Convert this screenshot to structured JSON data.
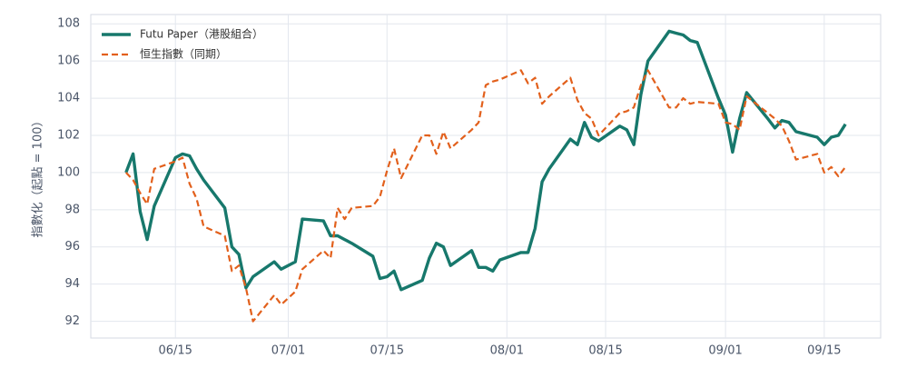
{
  "chart_data": {
    "type": "line",
    "y_label": "指數化（起點 = 100）",
    "x": [
      "06/08",
      "06/09",
      "06/10",
      "06/11",
      "06/12",
      "06/15",
      "06/16",
      "06/17",
      "06/18",
      "06/19",
      "06/22",
      "06/23",
      "06/24",
      "06/25",
      "06/26",
      "06/29",
      "06/30",
      "07/02",
      "07/03",
      "07/06",
      "07/07",
      "07/08",
      "07/09",
      "07/10",
      "07/13",
      "07/14",
      "07/15",
      "07/16",
      "07/17",
      "07/20",
      "07/21",
      "07/22",
      "07/23",
      "07/24",
      "07/27",
      "07/28",
      "07/29",
      "07/30",
      "07/31",
      "08/03",
      "08/04",
      "08/05",
      "08/06",
      "08/07",
      "08/10",
      "08/11",
      "08/12",
      "08/13",
      "08/14",
      "08/17",
      "08/18",
      "08/19",
      "08/20",
      "08/21",
      "08/24",
      "08/25",
      "08/26",
      "08/27",
      "08/28",
      "08/31",
      "09/01",
      "09/02",
      "09/03",
      "09/04",
      "09/07",
      "09/08",
      "09/09",
      "09/10",
      "09/11",
      "09/14",
      "09/15",
      "09/16",
      "09/17",
      "09/18"
    ],
    "series": [
      {
        "name": "Futu Paper（港股組合）",
        "color": "#17786c",
        "dash": false,
        "values": [
          100.0,
          101.0,
          97.9,
          96.4,
          98.2,
          100.8,
          101.0,
          100.9,
          100.2,
          99.6,
          98.1,
          96.0,
          95.6,
          93.8,
          94.4,
          95.2,
          94.8,
          95.2,
          97.5,
          97.4,
          96.6,
          96.6,
          96.4,
          96.2,
          95.5,
          94.3,
          94.4,
          94.7,
          93.7,
          94.2,
          95.4,
          96.2,
          96.0,
          95.0,
          95.8,
          94.9,
          94.9,
          94.7,
          95.3,
          95.7,
          95.7,
          97.0,
          99.5,
          100.2,
          101.8,
          101.5,
          102.7,
          101.9,
          101.7,
          102.5,
          102.3,
          101.5,
          104.2,
          106.0,
          107.6,
          107.5,
          107.4,
          107.1,
          107.0,
          104.0,
          103.1,
          101.1,
          102.9,
          104.3,
          102.9,
          102.4,
          102.8,
          102.7,
          102.2,
          101.9,
          101.5,
          101.9,
          102.0,
          102.6
        ]
      },
      {
        "name": "恒生指數（同期）",
        "color": "#e2601c",
        "dash": true,
        "values": [
          100.0,
          99.6,
          98.9,
          98.3,
          100.2,
          100.6,
          100.8,
          99.4,
          98.6,
          97.1,
          96.6,
          94.7,
          95.0,
          93.8,
          92.0,
          93.4,
          92.9,
          93.6,
          94.8,
          95.8,
          95.4,
          98.1,
          97.5,
          98.1,
          98.2,
          98.7,
          100.1,
          101.3,
          99.7,
          102.0,
          102.0,
          101.0,
          102.2,
          101.3,
          102.3,
          102.7,
          104.7,
          104.9,
          105.0,
          105.5,
          104.8,
          105.1,
          103.7,
          104.1,
          105.1,
          103.9,
          103.2,
          102.9,
          102.0,
          103.2,
          103.3,
          103.5,
          104.7,
          105.5,
          103.5,
          103.5,
          104.0,
          103.7,
          103.8,
          103.7,
          102.7,
          102.6,
          102.3,
          104.1,
          103.2,
          102.9,
          102.5,
          101.7,
          100.7,
          101.0,
          100.0,
          100.3,
          99.8,
          100.3
        ]
      }
    ],
    "xlim": [
      "06/03",
      "09/23"
    ],
    "xticks": [
      "06/15",
      "07/01",
      "07/15",
      "08/01",
      "08/15",
      "09/01",
      "09/15"
    ],
    "ylim": [
      91.1,
      108.5
    ],
    "yticks": [
      92,
      94,
      96,
      98,
      100,
      102,
      104,
      106,
      108
    ],
    "grid": true,
    "legend": "upper-left"
  }
}
